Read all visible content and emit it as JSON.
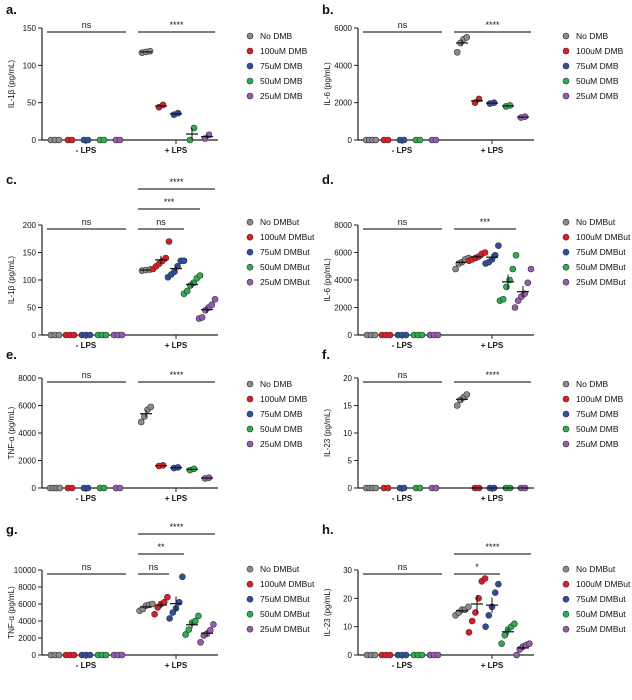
{
  "colors": [
    "#8c8c8c",
    "#e8191f",
    "#2c4fa3",
    "#27b24a",
    "#9b59b6"
  ],
  "chart_data": [
    {
      "id": "a",
      "type": "scatter",
      "ylabel": "IL-1β (pg/mL)",
      "ylim": [
        0,
        150
      ],
      "yticks": [
        0,
        50,
        100,
        150
      ],
      "xcats": [
        "- LPS",
        "+ LPS"
      ],
      "legend": [
        "No DMB",
        "100uM DMB",
        "75uM DMB",
        "50uM DMB",
        "25uM DMB"
      ],
      "neg": [
        [
          0,
          0,
          0
        ],
        [
          0,
          0
        ],
        [
          0,
          0
        ],
        [
          0,
          0
        ],
        [
          0,
          0
        ]
      ],
      "pos": [
        [
          117,
          118,
          119
        ],
        [
          44,
          47
        ],
        [
          34,
          36
        ],
        [
          0,
          16
        ],
        [
          2,
          7
        ]
      ],
      "brackets": [
        {
          "label": "ns",
          "side": 0,
          "from": 0,
          "to": 4,
          "tier": 0
        },
        {
          "label": "****",
          "side": 1,
          "from": 0,
          "to": 4,
          "tier": 0
        }
      ]
    },
    {
      "id": "b",
      "type": "scatter",
      "ylabel": "IL-6 (pg/mL)",
      "ylim": [
        0,
        6000
      ],
      "yticks": [
        0,
        2000,
        4000,
        6000
      ],
      "xcats": [
        "- LPS",
        "+ LPS"
      ],
      "legend": [
        "No DMB",
        "100uM DMB",
        "75uM DMB",
        "50uM DMB",
        "25uM DMB"
      ],
      "neg": [
        [
          0,
          0,
          0,
          0
        ],
        [
          0,
          0
        ],
        [
          0,
          0
        ],
        [
          0,
          0
        ],
        [
          0,
          0
        ]
      ],
      "pos": [
        [
          4700,
          5200,
          5400,
          5500
        ],
        [
          2000,
          2200
        ],
        [
          1950,
          2000
        ],
        [
          1800,
          1850
        ],
        [
          1200,
          1250
        ]
      ],
      "brackets": [
        {
          "label": "ns",
          "side": 0,
          "from": 0,
          "to": 4,
          "tier": 0
        },
        {
          "label": "****",
          "side": 1,
          "from": 0,
          "to": 4,
          "tier": 0
        }
      ]
    },
    {
      "id": "c",
      "type": "scatter",
      "ylabel": "IL-1β (pg/mL)",
      "ylim": [
        0,
        200
      ],
      "yticks": [
        0,
        50,
        100,
        150,
        200
      ],
      "xcats": [
        "- LPS",
        "+ LPS"
      ],
      "legend": [
        "No DMBut",
        "100uM DMBut",
        "75uM DMBut",
        "50uM DMBut",
        "25uM DMBut"
      ],
      "neg": [
        [
          0,
          0,
          0
        ],
        [
          0,
          0,
          0
        ],
        [
          0,
          0,
          0
        ],
        [
          0,
          0,
          0
        ],
        [
          0,
          0,
          0
        ]
      ],
      "pos": [
        [
          117,
          118,
          119
        ],
        [
          120,
          125,
          130,
          135,
          140,
          170
        ],
        [
          105,
          110,
          115,
          125,
          135,
          135
        ],
        [
          75,
          80,
          90,
          95,
          103,
          108
        ],
        [
          30,
          32,
          45,
          50,
          55,
          65
        ]
      ],
      "brackets": [
        {
          "label": "ns",
          "side": 0,
          "from": 0,
          "to": 4,
          "tier": 0
        },
        {
          "label": "ns",
          "side": 1,
          "from": 0,
          "to": 2,
          "tier": 0
        },
        {
          "label": "***",
          "side": 1,
          "from": 0,
          "to": 3,
          "tier": 1
        },
        {
          "label": "****",
          "side": 1,
          "from": 0,
          "to": 4,
          "tier": 2
        }
      ]
    },
    {
      "id": "d",
      "type": "scatter",
      "ylabel": "IL-6 (pg/mL)",
      "ylim": [
        0,
        8000
      ],
      "yticks": [
        0,
        2000,
        4000,
        6000,
        8000
      ],
      "xcats": [
        "- LPS",
        "+ LPS"
      ],
      "legend": [
        "No DMBut",
        "100uM DMBut",
        "75uM DMBut",
        "50uM DMBut",
        "25uM DMBut"
      ],
      "neg": [
        [
          0,
          0,
          0
        ],
        [
          0,
          0,
          0
        ],
        [
          0,
          0,
          0
        ],
        [
          0,
          0,
          0
        ],
        [
          0,
          0,
          0
        ]
      ],
      "pos": [
        [
          4800,
          5200,
          5300,
          5500,
          5600
        ],
        [
          5400,
          5500,
          5600,
          5700,
          5900,
          6000
        ],
        [
          5200,
          5300,
          5500,
          5800,
          6500
        ],
        [
          2500,
          2600,
          3500,
          4000,
          4800,
          5800
        ],
        [
          2000,
          2500,
          2800,
          3000,
          3800,
          4800
        ]
      ],
      "brackets": [
        {
          "label": "ns",
          "side": 0,
          "from": 0,
          "to": 4,
          "tier": 0
        },
        {
          "label": "***",
          "side": 1,
          "from": 0,
          "to": 3,
          "tier": 0
        }
      ]
    },
    {
      "id": "e",
      "type": "scatter",
      "ylabel": "TNF-α (pg/mL)",
      "ylim": [
        0,
        8000
      ],
      "yticks": [
        0,
        2000,
        4000,
        6000,
        8000
      ],
      "xcats": [
        "- LPS",
        "+ LPS"
      ],
      "legend": [
        "No DMB",
        "100uM DMB",
        "75uM DMB",
        "50uM DMB",
        "25uM DMB"
      ],
      "neg": [
        [
          0,
          0,
          0,
          0
        ],
        [
          0,
          0
        ],
        [
          0,
          0
        ],
        [
          0,
          0
        ],
        [
          0,
          0
        ]
      ],
      "pos": [
        [
          4800,
          5200,
          5700,
          5900
        ],
        [
          1600,
          1650
        ],
        [
          1450,
          1500
        ],
        [
          1300,
          1400
        ],
        [
          700,
          750
        ]
      ],
      "brackets": [
        {
          "label": "ns",
          "side": 0,
          "from": 0,
          "to": 4,
          "tier": 0
        },
        {
          "label": "****",
          "side": 1,
          "from": 0,
          "to": 4,
          "tier": 0
        }
      ]
    },
    {
      "id": "f",
      "type": "scatter",
      "ylabel": "IL-23 (pg/mL)",
      "ylim": [
        0,
        20
      ],
      "yticks": [
        0,
        5,
        10,
        15,
        20
      ],
      "xcats": [
        "- LPS",
        "+ LPS"
      ],
      "legend": [
        "No DMB",
        "100uM DMB",
        "75uM DMB",
        "50uM DMB",
        "25uM DMB"
      ],
      "neg": [
        [
          0,
          0,
          0,
          0
        ],
        [
          0,
          0
        ],
        [
          0,
          0
        ],
        [
          0,
          0
        ],
        [
          0,
          0
        ]
      ],
      "pos": [
        [
          15,
          16,
          16.5,
          17
        ],
        [
          0,
          0
        ],
        [
          0,
          0
        ],
        [
          0,
          0
        ],
        [
          0,
          0
        ]
      ],
      "brackets": [
        {
          "label": "ns",
          "side": 0,
          "from": 0,
          "to": 4,
          "tier": 0
        },
        {
          "label": "****",
          "side": 1,
          "from": 0,
          "to": 4,
          "tier": 0
        }
      ]
    },
    {
      "id": "g",
      "type": "scatter",
      "ylabel": "TNF-α (pg/mL)",
      "ylim": [
        0,
        10000
      ],
      "yticks": [
        0,
        2000,
        4000,
        6000,
        8000,
        10000
      ],
      "xcats": [
        "- LPS",
        "+ LPS"
      ],
      "legend": [
        "No DMBut",
        "100uM DMBut",
        "75uM DMBut",
        "50uM DMBut",
        "25uM DMBut"
      ],
      "neg": [
        [
          0,
          0,
          0
        ],
        [
          0,
          0,
          0
        ],
        [
          0,
          0,
          0
        ],
        [
          0,
          0,
          0
        ],
        [
          0,
          0,
          0
        ]
      ],
      "pos": [
        [
          5200,
          5400,
          5800,
          5900,
          6000
        ],
        [
          4800,
          5600,
          6000,
          6200,
          6800
        ],
        [
          4300,
          5000,
          5500,
          6200,
          9200
        ],
        [
          2400,
          3000,
          3800,
          4000,
          4600
        ],
        [
          1500,
          2300,
          2500,
          2900,
          3600
        ]
      ],
      "brackets": [
        {
          "label": "ns",
          "side": 0,
          "from": 0,
          "to": 4,
          "tier": 0
        },
        {
          "label": "ns",
          "side": 1,
          "from": 0,
          "to": 1,
          "tier": 0
        },
        {
          "label": "**",
          "side": 1,
          "from": 0,
          "to": 2,
          "tier": 1
        },
        {
          "label": "****",
          "side": 1,
          "from": 0,
          "to": 4,
          "tier": 2
        }
      ]
    },
    {
      "id": "h",
      "type": "scatter",
      "ylabel": "IL-23 (pg/mL)",
      "ylim": [
        0,
        30
      ],
      "yticks": [
        0,
        10,
        20,
        30
      ],
      "xcats": [
        "- LPS",
        "+ LPS"
      ],
      "legend": [
        "No DMBut",
        "100uM DMBut",
        "75uM DMBut",
        "50uM DMBut",
        "25uM DMBut"
      ],
      "neg": [
        [
          0,
          0,
          0
        ],
        [
          0,
          0,
          0
        ],
        [
          0,
          0,
          0
        ],
        [
          0,
          0,
          0
        ],
        [
          0,
          0,
          0
        ]
      ],
      "pos": [
        [
          14,
          15,
          16,
          16,
          17
        ],
        [
          8,
          12,
          15,
          20,
          26,
          27
        ],
        [
          10,
          14,
          17,
          22,
          25
        ],
        [
          4,
          7,
          9,
          10,
          11
        ],
        [
          0,
          2,
          3,
          3.5,
          4
        ]
      ],
      "brackets": [
        {
          "label": "ns",
          "side": 0,
          "from": 0,
          "to": 4,
          "tier": 0
        },
        {
          "label": "*",
          "side": 1,
          "from": 0,
          "to": 2,
          "tier": 0
        },
        {
          "label": "****",
          "side": 1,
          "from": 0,
          "to": 4,
          "tier": 1
        }
      ]
    }
  ]
}
